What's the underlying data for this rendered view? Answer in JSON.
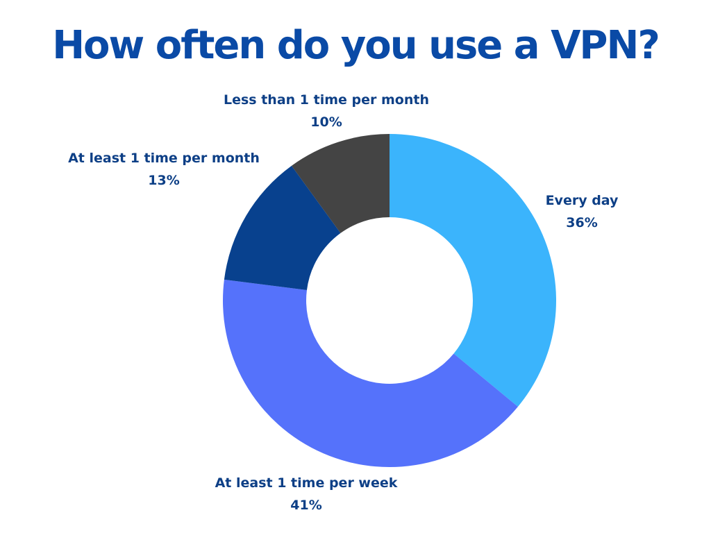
{
  "colors": {
    "title": "#0a4aa6",
    "label": "#0d3f86",
    "every_day": "#3bb4fc",
    "weekly": "#5572fb",
    "monthly": "#08418e",
    "less_monthly": "#444444"
  },
  "chart_data": {
    "type": "pie",
    "style": "donut",
    "title": "How often do you use a VPN?",
    "categories": [
      "Every day",
      "At least 1 time per week",
      "At least 1 time per month",
      "Less than 1 time per month"
    ],
    "values": [
      36,
      41,
      13,
      10
    ],
    "value_labels": [
      "36%",
      "41%",
      "13%",
      "10%"
    ],
    "colors": [
      "#3bb4fc",
      "#5572fb",
      "#08418e",
      "#444444"
    ],
    "start_angle": "12 o'clock",
    "direction": "clockwise"
  }
}
